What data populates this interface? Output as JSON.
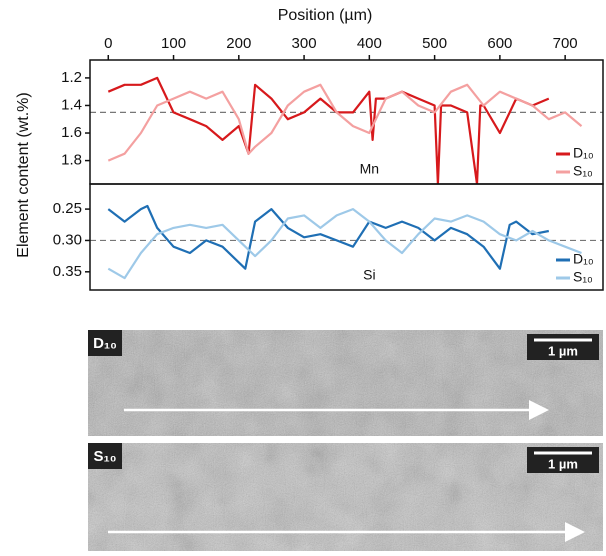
{
  "chart_data": [
    {
      "type": "line",
      "xlabel": "Position (µm)",
      "ylabel": "Element content (wt.%)",
      "annotation": "Mn",
      "xlim": [
        -28,
        758
      ],
      "xticks": [
        0,
        100,
        200,
        300,
        400,
        500,
        600,
        700
      ],
      "ylim": [
        1.07,
        1.97
      ],
      "y_inverted": true,
      "yticks": [
        1.2,
        1.4,
        1.6,
        1.8
      ],
      "reference": 1.45,
      "legend": "lower right",
      "series": [
        {
          "name": "D₁₀",
          "color": "#d7191c",
          "x": [
            0,
            25,
            50,
            75,
            100,
            125,
            150,
            175,
            200,
            215,
            225,
            250,
            275,
            300,
            325,
            350,
            375,
            400,
            405,
            410,
            425,
            450,
            475,
            500,
            505,
            510,
            525,
            550,
            565,
            570,
            575,
            600,
            625,
            650,
            675
          ],
          "values": [
            1.3,
            1.25,
            1.25,
            1.2,
            1.45,
            1.5,
            1.55,
            1.65,
            1.55,
            1.75,
            1.25,
            1.35,
            1.5,
            1.45,
            1.35,
            1.45,
            1.45,
            1.3,
            1.65,
            1.35,
            1.35,
            1.3,
            1.35,
            1.4,
            1.97,
            1.4,
            1.4,
            1.45,
            1.97,
            1.4,
            1.4,
            1.6,
            1.35,
            1.4,
            1.35
          ]
        },
        {
          "name": "S₁₀",
          "color": "#f4a0a0",
          "x": [
            0,
            25,
            50,
            75,
            100,
            125,
            150,
            175,
            200,
            215,
            225,
            250,
            275,
            300,
            325,
            350,
            375,
            400,
            425,
            450,
            475,
            500,
            525,
            550,
            575,
            600,
            625,
            650,
            675,
            700,
            725
          ],
          "values": [
            1.8,
            1.75,
            1.6,
            1.4,
            1.35,
            1.3,
            1.35,
            1.3,
            1.5,
            1.75,
            1.7,
            1.6,
            1.4,
            1.3,
            1.25,
            1.45,
            1.55,
            1.6,
            1.35,
            1.3,
            1.4,
            1.45,
            1.3,
            1.25,
            1.4,
            1.3,
            1.35,
            1.4,
            1.5,
            1.45,
            1.55
          ]
        }
      ]
    },
    {
      "type": "line",
      "annotation": "Si",
      "xlim": [
        -28,
        758
      ],
      "ylim": [
        0.21,
        0.379
      ],
      "y_inverted": true,
      "yticks": [
        0.25,
        {
          "value": 0.3,
          "label": "0.30"
        },
        0.35
      ],
      "reference": 0.3,
      "legend": "lower right",
      "series": [
        {
          "name": "D₁₀",
          "color": "#1f6fb4",
          "x": [
            0,
            25,
            50,
            60,
            75,
            100,
            125,
            150,
            175,
            200,
            210,
            225,
            250,
            275,
            300,
            325,
            350,
            375,
            400,
            425,
            450,
            475,
            500,
            525,
            550,
            575,
            600,
            615,
            625,
            650,
            675
          ],
          "values": [
            0.25,
            0.27,
            0.25,
            0.245,
            0.28,
            0.31,
            0.32,
            0.3,
            0.31,
            0.335,
            0.345,
            0.27,
            0.25,
            0.28,
            0.295,
            0.29,
            0.3,
            0.31,
            0.27,
            0.28,
            0.27,
            0.28,
            0.3,
            0.28,
            0.29,
            0.31,
            0.345,
            0.275,
            0.27,
            0.29,
            0.285
          ]
        },
        {
          "name": "S₁₀",
          "color": "#9ec9e8",
          "x": [
            0,
            25,
            50,
            75,
            100,
            125,
            150,
            175,
            200,
            225,
            250,
            275,
            300,
            325,
            350,
            375,
            400,
            425,
            450,
            475,
            500,
            525,
            550,
            575,
            600,
            625,
            650,
            675,
            700,
            725
          ],
          "values": [
            0.345,
            0.36,
            0.32,
            0.29,
            0.28,
            0.275,
            0.28,
            0.275,
            0.3,
            0.325,
            0.3,
            0.265,
            0.26,
            0.28,
            0.26,
            0.25,
            0.27,
            0.3,
            0.32,
            0.29,
            0.265,
            0.27,
            0.26,
            0.27,
            0.29,
            0.3,
            0.285,
            0.3,
            0.31,
            0.32
          ]
        }
      ]
    }
  ],
  "images": [
    {
      "label": "D₁₀",
      "scale": "1 µm"
    },
    {
      "label": "S₁₀",
      "scale": "1 µm"
    }
  ]
}
